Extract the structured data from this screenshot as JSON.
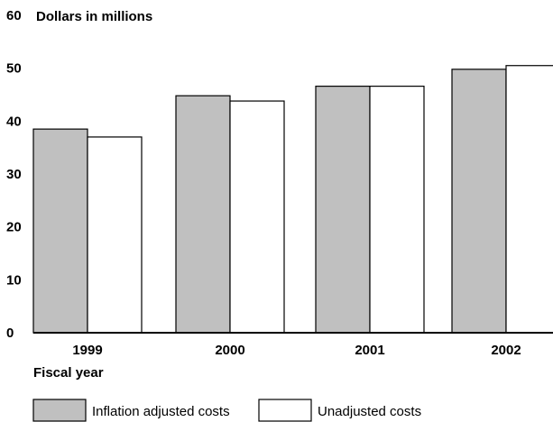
{
  "chart_data": {
    "type": "bar",
    "title": "Dollars in millions",
    "xlabel": "Fiscal year",
    "ylabel": "Dollars in millions",
    "categories": [
      "1999",
      "2000",
      "2001",
      "2002"
    ],
    "series": [
      {
        "name": "Inflation adjusted costs",
        "values": [
          38.5,
          44.8,
          46.6,
          49.8
        ],
        "color": "#c0c0c0"
      },
      {
        "name": "Unadjusted costs",
        "values": [
          37.0,
          43.8,
          46.6,
          50.5
        ],
        "color": "#ffffff"
      }
    ],
    "ylim": [
      0,
      60
    ],
    "yticks": [
      "0",
      "10",
      "20",
      "30",
      "40",
      "50",
      "60"
    ],
    "grid": false,
    "legend_position": "bottom-left"
  }
}
